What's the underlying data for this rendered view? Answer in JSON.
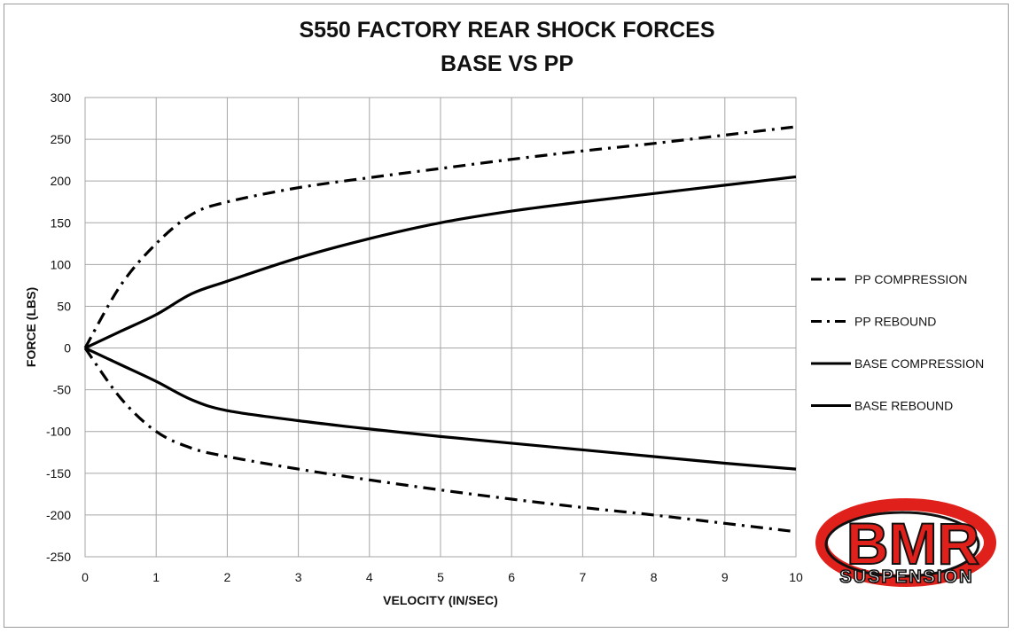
{
  "chart_data": {
    "type": "line",
    "title": "S550 FACTORY REAR SHOCK FORCES",
    "subtitle": "BASE VS PP",
    "xlabel": "VELOCITY (IN/SEC)",
    "ylabel": "FORCE (LBS)",
    "xlim": [
      0,
      10
    ],
    "ylim": [
      -250,
      300
    ],
    "x_ticks": [
      "0",
      "1",
      "2",
      "3",
      "4",
      "5",
      "6",
      "7",
      "8",
      "9",
      "10"
    ],
    "y_ticks": [
      "300",
      "250",
      "200",
      "150",
      "100",
      "50",
      "0",
      "-50",
      "-100",
      "-150",
      "-200",
      "-250"
    ],
    "grid": true,
    "legend_position": "right",
    "series": [
      {
        "name": "PP COMPRESSION",
        "style": "dash-dot",
        "x": [
          0,
          0.5,
          1,
          1.5,
          2,
          3,
          4,
          5,
          6,
          7,
          8,
          9,
          10
        ],
        "y": [
          0,
          75,
          125,
          160,
          175,
          192,
          204,
          215,
          226,
          236,
          245,
          255,
          265
        ]
      },
      {
        "name": "PP REBOUND",
        "style": "dash-dot",
        "x": [
          0,
          0.5,
          1,
          1.5,
          2,
          3,
          4,
          5,
          6,
          7,
          8,
          9,
          10
        ],
        "y": [
          0,
          -60,
          -100,
          -120,
          -130,
          -145,
          -158,
          -170,
          -181,
          -191,
          -200,
          -210,
          -220
        ]
      },
      {
        "name": "BASE COMPRESSION",
        "style": "solid",
        "x": [
          0,
          0.5,
          1,
          1.5,
          2,
          3,
          4,
          5,
          6,
          7,
          8,
          9,
          10
        ],
        "y": [
          0,
          20,
          40,
          65,
          80,
          108,
          131,
          150,
          164,
          175,
          185,
          195,
          205
        ]
      },
      {
        "name": "BASE REBOUND",
        "style": "solid",
        "x": [
          0,
          0.5,
          1,
          1.5,
          2,
          3,
          4,
          5,
          6,
          7,
          8,
          9,
          10
        ],
        "y": [
          0,
          -20,
          -40,
          -62,
          -75,
          -87,
          -97,
          -106,
          -114,
          -122,
          -130,
          -138,
          -145
        ]
      }
    ]
  },
  "logo": {
    "main": "BMR",
    "sub": "SUSPENSION",
    "colors": {
      "red": "#e0201b",
      "black": "#111111"
    }
  },
  "colors": {
    "line": "#000000",
    "grid": "#a6a6a6",
    "text": "#111111"
  }
}
